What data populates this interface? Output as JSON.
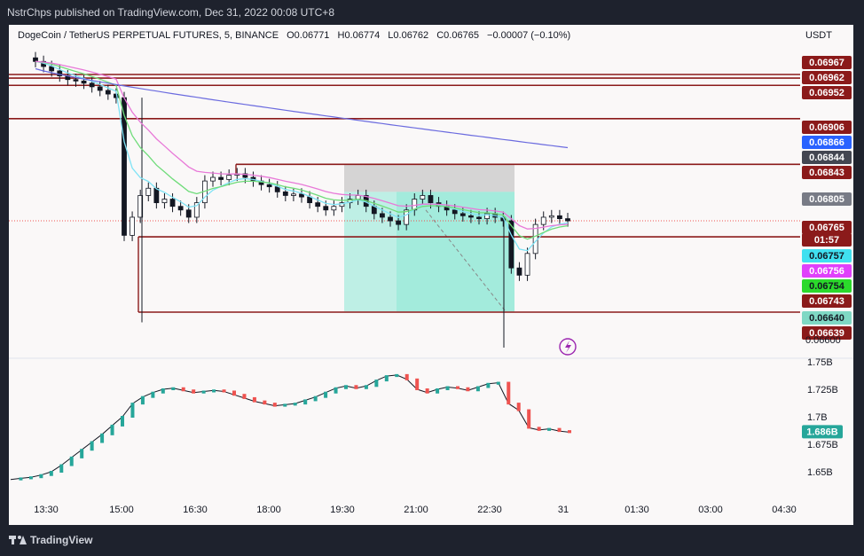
{
  "header": {
    "published": "NstrChps published on TradingView.com, Dec 31, 2022 00:08 UTC+8"
  },
  "legend": {
    "symbol": "DogeCoin / TetherUS PERPETUAL FUTURES, 5, BINANCE",
    "open": "O0.06771",
    "high": "H0.06774",
    "low": "L0.06762",
    "close": "C0.06765",
    "change": "−0.00007 (−0.10%)"
  },
  "currency": "USDT",
  "footer": {
    "brand": "TradingView"
  },
  "colors": {
    "up": "#26a69a",
    "down": "#ef5350",
    "level": "#8b1a1a",
    "ema_cyan": "#7fe3f5",
    "ema_green": "#6fdc7a",
    "ema_pink": "#e879d8",
    "ema_blue": "#6b6bdf",
    "position_profit": "#8de8d6",
    "position_loss": "#c8c8c8"
  },
  "chart_data": [
    {
      "type": "candlestick",
      "title": "DogeCoin / TetherUS PERPETUAL FUTURES, 5, BINANCE",
      "y_axis": {
        "ticks": [
          "0.06600"
        ],
        "ylim": [
          0.0658,
          0.0698
        ]
      },
      "x_axis": {
        "ticks": [
          "13:30",
          "15:00",
          "16:30",
          "18:00",
          "19:30",
          "21:00",
          "22:30",
          "31",
          "01:30",
          "03:00",
          "04:30"
        ]
      },
      "price_labels": [
        {
          "value": "0.06967",
          "kind": "level"
        },
        {
          "value": "0.06962",
          "kind": "level"
        },
        {
          "value": "0.06952",
          "kind": "level"
        },
        {
          "value": "0.06906",
          "kind": "level"
        },
        {
          "value": "0.06866",
          "kind": "ema_blue"
        },
        {
          "value": "0.06844",
          "kind": "dark"
        },
        {
          "value": "0.06843",
          "kind": "level"
        },
        {
          "value": "0.06805",
          "kind": "grey"
        },
        {
          "value": "0.06765",
          "kind": "last"
        },
        {
          "value": "01:57",
          "kind": "countdown"
        },
        {
          "value": "0.06757",
          "kind": "ema_cyan"
        },
        {
          "value": "0.06756",
          "kind": "ema_pink"
        },
        {
          "value": "0.06754",
          "kind": "ema_green"
        },
        {
          "value": "0.06743",
          "kind": "level"
        },
        {
          "value": "0.06640",
          "kind": "profit"
        },
        {
          "value": "0.06639",
          "kind": "level"
        }
      ],
      "horizontal_levels": [
        0.06967,
        0.06962,
        0.06952,
        0.06906,
        0.06843,
        0.06743,
        0.06639
      ],
      "last_price": 0.06765,
      "position": {
        "entry": 0.06805,
        "stop": 0.06843,
        "target": 0.0664
      },
      "close_series": [
        0.06985,
        0.06978,
        0.06972,
        0.06965,
        0.0696,
        0.06958,
        0.06955,
        0.0695,
        0.06945,
        0.0694,
        0.06935,
        0.06745,
        0.0677,
        0.068,
        0.0681,
        0.0679,
        0.06795,
        0.06785,
        0.0678,
        0.0677,
        0.0679,
        0.0682,
        0.06825,
        0.06822,
        0.06828,
        0.0683,
        0.06825,
        0.0682,
        0.06815,
        0.06812,
        0.06805,
        0.068,
        0.06802,
        0.06798,
        0.0679,
        0.06785,
        0.0678,
        0.06785,
        0.0679,
        0.06795,
        0.068,
        0.06785,
        0.06775,
        0.0677,
        0.06765,
        0.0676,
        0.0678,
        0.06795,
        0.068,
        0.0679,
        0.06785,
        0.0678,
        0.06775,
        0.06772,
        0.0677,
        0.06768,
        0.06775,
        0.0677,
        0.06765,
        0.067,
        0.0669,
        0.0672,
        0.0676,
        0.0677,
        0.06772,
        0.06768,
        0.06765
      ]
    },
    {
      "type": "line",
      "title": "",
      "y_axis": {
        "ticks": [
          "1.75B",
          "1.725B",
          "1.7B",
          "1.675B",
          "1.65B"
        ],
        "ylim": [
          1.638,
          1.752
        ]
      },
      "last_value": "1.686B",
      "series": [
        {
          "values": [
            1.643,
            1.644,
            1.645,
            1.647,
            1.65,
            1.656,
            1.663,
            1.67,
            1.677,
            1.684,
            1.692,
            1.7,
            1.712,
            1.718,
            1.722,
            1.725,
            1.726,
            1.724,
            1.722,
            1.723,
            1.724,
            1.723,
            1.72,
            1.717,
            1.714,
            1.712,
            1.71,
            1.711,
            1.712,
            1.715,
            1.718,
            1.722,
            1.726,
            1.728,
            1.726,
            1.728,
            1.733,
            1.737,
            1.738,
            1.734,
            1.725,
            1.722,
            1.725,
            1.727,
            1.726,
            1.724,
            1.727,
            1.73,
            1.731,
            1.712,
            1.706,
            1.69,
            1.688,
            1.689,
            1.687,
            1.686
          ]
        }
      ]
    }
  ]
}
